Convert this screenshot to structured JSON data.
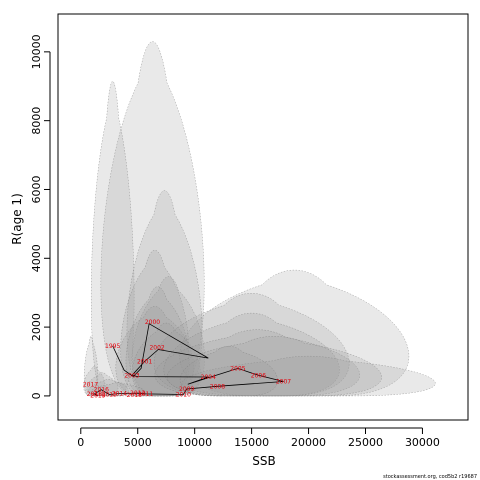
{
  "chart_data": {
    "type": "scatter",
    "xlabel": "SSB",
    "ylabel": "R(age 1)",
    "xlim": [
      -2000,
      34000
    ],
    "ylim": [
      -700,
      11100
    ],
    "x_ticks": [
      0,
      5000,
      10000,
      15000,
      20000,
      25000,
      30000
    ],
    "y_ticks": [
      0,
      2000,
      4000,
      6000,
      8000,
      10000
    ],
    "x_tick_labels": [
      "0",
      "5000",
      "10000",
      "15000",
      "20000",
      "25000",
      "30000"
    ],
    "y_tick_labels": [
      "0",
      "2000",
      "4000",
      "6000",
      "8000",
      "10000"
    ],
    "grid": false,
    "credit": "stockassessment.org, cod5b2 r19687",
    "colors": {
      "ellipse_fill": "#9a9a9a",
      "ellipse_edge": "#7a7a7a",
      "trajectory": "#000000",
      "year_label": "#e8000b"
    },
    "labeled_points": [
      {
        "label": "1995",
        "x": 2800,
        "y": 1450
      },
      {
        "label": "2000",
        "x": 6300,
        "y": 2150
      },
      {
        "label": "2001",
        "x": 5600,
        "y": 1000
      },
      {
        "label": "2002",
        "x": 6700,
        "y": 1400
      },
      {
        "label": "2003",
        "x": 4500,
        "y": 600
      },
      {
        "label": "2004",
        "x": 11200,
        "y": 550
      },
      {
        "label": "2005",
        "x": 13800,
        "y": 800
      },
      {
        "label": "2006",
        "x": 15600,
        "y": 600
      },
      {
        "label": "2007",
        "x": 17800,
        "y": 420
      },
      {
        "label": "2008",
        "x": 12000,
        "y": 280
      },
      {
        "label": "2009",
        "x": 9300,
        "y": 200
      },
      {
        "label": "2010",
        "x": 9000,
        "y": 40
      },
      {
        "label": "2011",
        "x": 5700,
        "y": 60
      },
      {
        "label": "2012",
        "x": 5000,
        "y": 80
      },
      {
        "label": "2013",
        "x": 4700,
        "y": 20
      },
      {
        "label": "2014",
        "x": 3400,
        "y": 70
      },
      {
        "label": "2015",
        "x": 2500,
        "y": 40
      },
      {
        "label": "2016",
        "x": 1800,
        "y": 180
      },
      {
        "label": "2017",
        "x": 850,
        "y": 330
      },
      {
        "label": "2018",
        "x": 1200,
        "y": 60
      },
      {
        "label": "2019",
        "x": 1500,
        "y": 10
      }
    ],
    "trajectory": [
      {
        "x": 2800,
        "y": 1450
      },
      {
        "x": 3800,
        "y": 750
      },
      {
        "x": 4600,
        "y": 560
      },
      {
        "x": 5300,
        "y": 800
      },
      {
        "x": 6000,
        "y": 2100
      },
      {
        "x": 11200,
        "y": 1100
      },
      {
        "x": 6800,
        "y": 1350
      },
      {
        "x": 5600,
        "y": 1000
      },
      {
        "x": 4500,
        "y": 600
      },
      {
        "x": 5000,
        "y": 560
      },
      {
        "x": 11200,
        "y": 550
      },
      {
        "x": 9400,
        "y": 340
      },
      {
        "x": 13800,
        "y": 800
      },
      {
        "x": 15600,
        "y": 600
      },
      {
        "x": 17800,
        "y": 420
      },
      {
        "x": 12000,
        "y": 280
      },
      {
        "x": 9300,
        "y": 200
      },
      {
        "x": 9000,
        "y": 40
      },
      {
        "x": 5700,
        "y": 60
      },
      {
        "x": 5000,
        "y": 80
      },
      {
        "x": 3400,
        "y": 70
      },
      {
        "x": 2500,
        "y": 40
      },
      {
        "x": 1800,
        "y": 180
      },
      {
        "x": 1200,
        "y": 60
      },
      {
        "x": 1500,
        "y": 10
      }
    ],
    "confidence_regions": [
      {
        "x_min": 1000,
        "x_max": 11600,
        "y_min": 0,
        "y_max": 10700
      },
      {
        "x_min": 600,
        "x_max": 5000,
        "y_min": 0,
        "y_max": 9500
      },
      {
        "x_min": 3500,
        "x_max": 11200,
        "y_min": 0,
        "y_max": 6200
      },
      {
        "x_min": 3000,
        "x_max": 10000,
        "y_min": 0,
        "y_max": 4400
      },
      {
        "x_min": 4000,
        "x_max": 11400,
        "y_min": 0,
        "y_max": 3600
      },
      {
        "x_min": 3500,
        "x_max": 10000,
        "y_min": 0,
        "y_max": 3300
      },
      {
        "x_min": 2500,
        "x_max": 10500,
        "y_min": 0,
        "y_max": 2700
      },
      {
        "x_min": 4000,
        "x_max": 11000,
        "y_min": 0,
        "y_max": 2200
      },
      {
        "x_min": 7000,
        "x_max": 30500,
        "y_min": 0,
        "y_max": 3800
      },
      {
        "x_min": 5000,
        "x_max": 25000,
        "y_min": 0,
        "y_max": 3100
      },
      {
        "x_min": 6000,
        "x_max": 24000,
        "y_min": 0,
        "y_max": 2500
      },
      {
        "x_min": 5000,
        "x_max": 26000,
        "y_min": 0,
        "y_max": 2000
      },
      {
        "x_min": 7000,
        "x_max": 33000,
        "y_min": 0,
        "y_max": 1200
      },
      {
        "x_min": 6000,
        "x_max": 28000,
        "y_min": 0,
        "y_max": 1800
      },
      {
        "x_min": 8000,
        "x_max": 18000,
        "y_min": 0,
        "y_max": 1500
      },
      {
        "x_min": 200,
        "x_max": 1600,
        "y_min": 0,
        "y_max": 1800
      },
      {
        "x_min": 100,
        "x_max": 2300,
        "y_min": 0,
        "y_max": 900
      },
      {
        "x_min": 300,
        "x_max": 3500,
        "y_min": 0,
        "y_max": 700
      },
      {
        "x_min": 400,
        "x_max": 4500,
        "y_min": 0,
        "y_max": 500
      },
      {
        "x_min": 500,
        "x_max": 6000,
        "y_min": 0,
        "y_max": 400
      }
    ]
  }
}
